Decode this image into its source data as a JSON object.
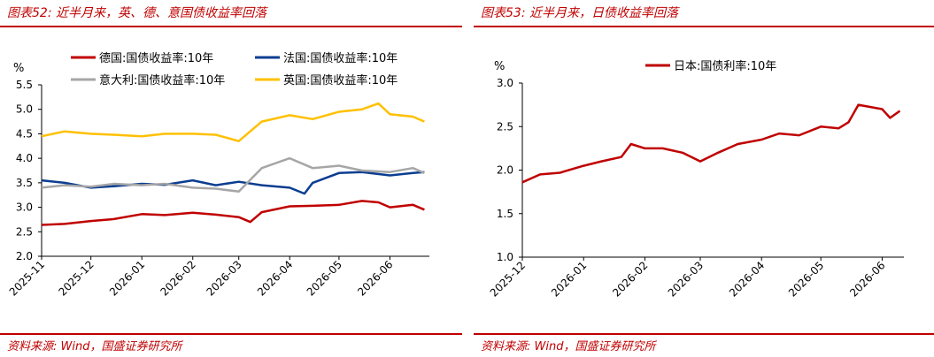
{
  "left_panel": {
    "title": "图表52:  近半月来，英、德、意国债收益率回落",
    "source": "资料来源:  Wind，国盛证券研究所"
  },
  "right_panel": {
    "title": "图表53:  近半月来，日债收益率回落",
    "source": "资料来源:  Wind，国盛证券研究所"
  },
  "chart_data": [
    {
      "type": "line",
      "ylabel": "%",
      "ylim": [
        2.0,
        5.5
      ],
      "yticks": [
        "2.0",
        "2.5",
        "3.0",
        "3.5",
        "4.0",
        "4.5",
        "5.0",
        "5.5"
      ],
      "x_tick_labels": [
        "2025-11",
        "2025-12",
        "2026-01",
        "2026-02",
        "2026-03",
        "2026-04",
        "2026-05",
        "2026-06"
      ],
      "legend_position": "top",
      "grid": false,
      "series": [
        {
          "name": "德国:国债收益率:10年",
          "color": "#c00000",
          "x": [
            "2025-11-01",
            "2025-11-15",
            "2025-12-01",
            "2025-12-15",
            "2026-01-01",
            "2026-01-15",
            "2026-02-01",
            "2026-02-15",
            "2026-03-01",
            "2026-03-08",
            "2026-03-15",
            "2026-04-01",
            "2026-04-15",
            "2026-05-01",
            "2026-05-15",
            "2026-05-25",
            "2026-06-01",
            "2026-06-15",
            "2026-06-22"
          ],
          "values": [
            2.64,
            2.66,
            2.72,
            2.76,
            2.86,
            2.84,
            2.89,
            2.85,
            2.8,
            2.7,
            2.9,
            3.02,
            3.03,
            3.05,
            3.13,
            3.1,
            3.0,
            3.05,
            2.95
          ]
        },
        {
          "name": "法国:国债收益率:10年",
          "color": "#0b3d91",
          "x": [
            "2025-11-01",
            "2025-11-15",
            "2025-12-01",
            "2025-12-15",
            "2026-01-01",
            "2026-01-15",
            "2026-02-01",
            "2026-02-15",
            "2026-03-01",
            "2026-03-15",
            "2026-04-01",
            "2026-04-10",
            "2026-04-15",
            "2026-05-01",
            "2026-05-15",
            "2026-06-01",
            "2026-06-15",
            "2026-06-22"
          ],
          "values": [
            3.55,
            3.5,
            3.4,
            3.43,
            3.48,
            3.46,
            3.55,
            3.45,
            3.52,
            3.45,
            3.4,
            3.28,
            3.5,
            3.7,
            3.72,
            3.65,
            3.7,
            3.72
          ]
        },
        {
          "name": "意大利:国债收益率:10年",
          "color": "#a6a6a6",
          "x": [
            "2025-11-01",
            "2025-11-15",
            "2025-12-01",
            "2025-12-15",
            "2026-01-01",
            "2026-01-15",
            "2026-02-01",
            "2026-02-15",
            "2026-03-01",
            "2026-03-15",
            "2026-04-01",
            "2026-04-15",
            "2026-05-01",
            "2026-05-15",
            "2026-06-01",
            "2026-06-15",
            "2026-06-22"
          ],
          "values": [
            3.4,
            3.45,
            3.42,
            3.48,
            3.45,
            3.48,
            3.4,
            3.38,
            3.32,
            3.8,
            4.0,
            3.8,
            3.85,
            3.75,
            3.72,
            3.8,
            3.7
          ]
        },
        {
          "name": "英国:国债收益率:10年",
          "color": "#ffc000",
          "x": [
            "2025-11-01",
            "2025-11-15",
            "2025-12-01",
            "2025-12-15",
            "2026-01-01",
            "2026-01-15",
            "2026-02-01",
            "2026-02-15",
            "2026-03-01",
            "2026-03-15",
            "2026-04-01",
            "2026-04-15",
            "2026-05-01",
            "2026-05-15",
            "2026-05-25",
            "2026-06-01",
            "2026-06-15",
            "2026-06-22"
          ],
          "values": [
            4.45,
            4.55,
            4.5,
            4.48,
            4.45,
            4.5,
            4.5,
            4.48,
            4.35,
            4.75,
            4.88,
            4.8,
            4.95,
            5.0,
            5.12,
            4.9,
            4.85,
            4.75
          ]
        }
      ]
    },
    {
      "type": "line",
      "ylabel": "%",
      "ylim": [
        1.0,
        3.0
      ],
      "yticks": [
        "1.0",
        "1.5",
        "2.0",
        "2.5",
        "3.0"
      ],
      "x_tick_labels": [
        "2025-12",
        "2026-01",
        "2026-02",
        "2026-03",
        "2026-04",
        "2026-05",
        "2026-06"
      ],
      "legend_position": "top",
      "grid": false,
      "series": [
        {
          "name": "日本:国债利率:10年",
          "color": "#c00000",
          "x": [
            "2025-12-01",
            "2025-12-10",
            "2025-12-20",
            "2026-01-01",
            "2026-01-10",
            "2026-01-20",
            "2026-01-25",
            "2026-02-01",
            "2026-02-10",
            "2026-02-20",
            "2026-03-01",
            "2026-03-10",
            "2026-03-20",
            "2026-04-01",
            "2026-04-10",
            "2026-04-20",
            "2026-05-01",
            "2026-05-10",
            "2026-05-15",
            "2026-05-20",
            "2026-06-01",
            "2026-06-05",
            "2026-06-10"
          ],
          "values": [
            1.86,
            1.95,
            1.97,
            2.05,
            2.1,
            2.15,
            2.3,
            2.25,
            2.25,
            2.2,
            2.1,
            2.2,
            2.3,
            2.35,
            2.42,
            2.4,
            2.5,
            2.48,
            2.55,
            2.75,
            2.7,
            2.6,
            2.68
          ]
        }
      ]
    }
  ]
}
